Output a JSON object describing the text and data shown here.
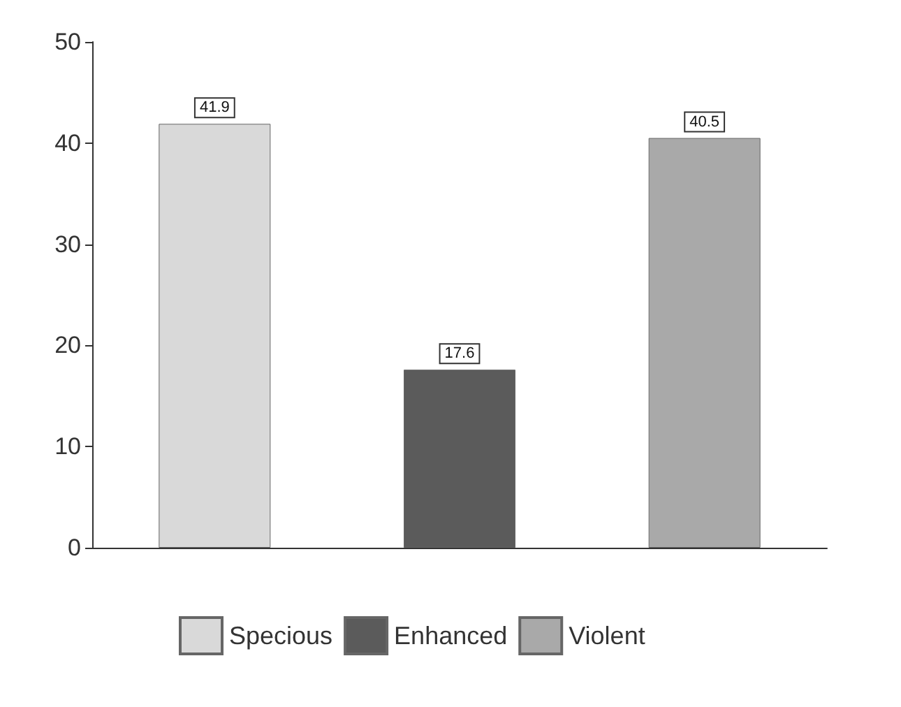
{
  "chart_data": {
    "type": "bar",
    "categories": [
      null,
      null,
      null
    ],
    "series": [
      {
        "name": "Specious",
        "color": "#d9d9d9",
        "values": [
          41.9,
          null,
          null
        ]
      },
      {
        "name": "Enhanced",
        "color": "#5b5b5b",
        "values": [
          null,
          17.6,
          null
        ]
      },
      {
        "name": "Violent",
        "color": "#a9a9a9",
        "values": [
          null,
          null,
          40.5
        ]
      }
    ],
    "ylim": [
      0,
      50
    ],
    "yticks": [
      0,
      10,
      20,
      30,
      40,
      50
    ],
    "grid": false,
    "legend": "bottom",
    "data_labels": true
  }
}
